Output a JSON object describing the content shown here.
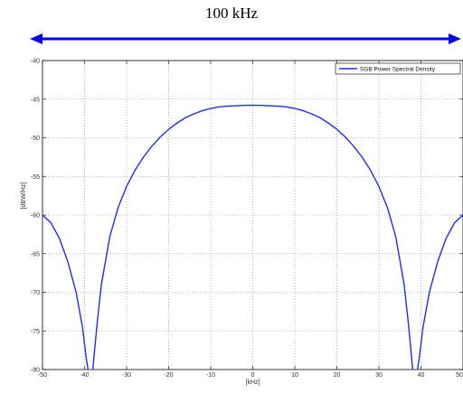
{
  "annotation": {
    "bandwidth_label": "100 kHz",
    "arrow_color": "#0000ee",
    "arrow_span_khz": [
      -50,
      50
    ]
  },
  "chart_data": {
    "type": "line",
    "title": "",
    "xlabel": "[kHz]",
    "ylabel": "[dBW/Hz]",
    "xlim": [
      -50,
      50
    ],
    "ylim": [
      -80,
      -40
    ],
    "xticks": [
      -50,
      -40,
      -30,
      -20,
      -10,
      0,
      10,
      20,
      30,
      40,
      50
    ],
    "yticks": [
      -40,
      -45,
      -50,
      -55,
      -60,
      -65,
      -70,
      -75,
      -80
    ],
    "xtick_labels": [
      "-50",
      "-40",
      "-30",
      "-20",
      "-10",
      "0",
      "10",
      "20",
      "30",
      "40",
      "50"
    ],
    "ytick_labels": [
      "-40",
      "-45",
      "-50",
      "-55",
      "-60",
      "-65",
      "-70",
      "-75",
      "-80"
    ],
    "grid": true,
    "legend_position": "top-right",
    "series": [
      {
        "name": "SGB Power Spectral Density",
        "color": "#1f2fe0",
        "x": [
          -50,
          -48,
          -46,
          -44,
          -42,
          -40.5,
          -39.6,
          -38.9,
          -38.6,
          -38.2,
          -37.7,
          -37,
          -36,
          -34,
          -32,
          -30,
          -28,
          -26,
          -24,
          -22,
          -20,
          -18,
          -16,
          -14,
          -12,
          -10,
          -8,
          -6,
          -4,
          -2,
          0,
          2,
          4,
          6,
          8,
          10,
          12,
          14,
          16,
          18,
          20,
          22,
          24,
          26,
          28,
          30,
          32,
          34,
          36,
          37,
          37.7,
          38.2,
          38.6,
          38.9,
          39.6,
          40.5,
          42,
          44,
          46,
          48,
          50
        ],
        "y": [
          -60.0,
          -61.0,
          -63.0,
          -66.0,
          -70.0,
          -74.5,
          -78.5,
          -81.0,
          -83.0,
          -81.0,
          -78.0,
          -74.0,
          -69.0,
          -62.8,
          -59.0,
          -56.3,
          -54.2,
          -52.5,
          -51.1,
          -49.9,
          -48.9,
          -48.1,
          -47.4,
          -46.9,
          -46.5,
          -46.2,
          -46.0,
          -45.9,
          -45.85,
          -45.8,
          -45.8,
          -45.8,
          -45.85,
          -45.9,
          -46.0,
          -46.2,
          -46.5,
          -46.9,
          -47.4,
          -48.1,
          -48.9,
          -49.9,
          -51.1,
          -52.5,
          -54.2,
          -56.3,
          -59.0,
          -62.8,
          -69.0,
          -74.0,
          -78.0,
          -81.0,
          -83.0,
          -81.0,
          -78.5,
          -74.5,
          -70.0,
          -66.0,
          -63.0,
          -61.0,
          -60.0
        ]
      }
    ]
  }
}
